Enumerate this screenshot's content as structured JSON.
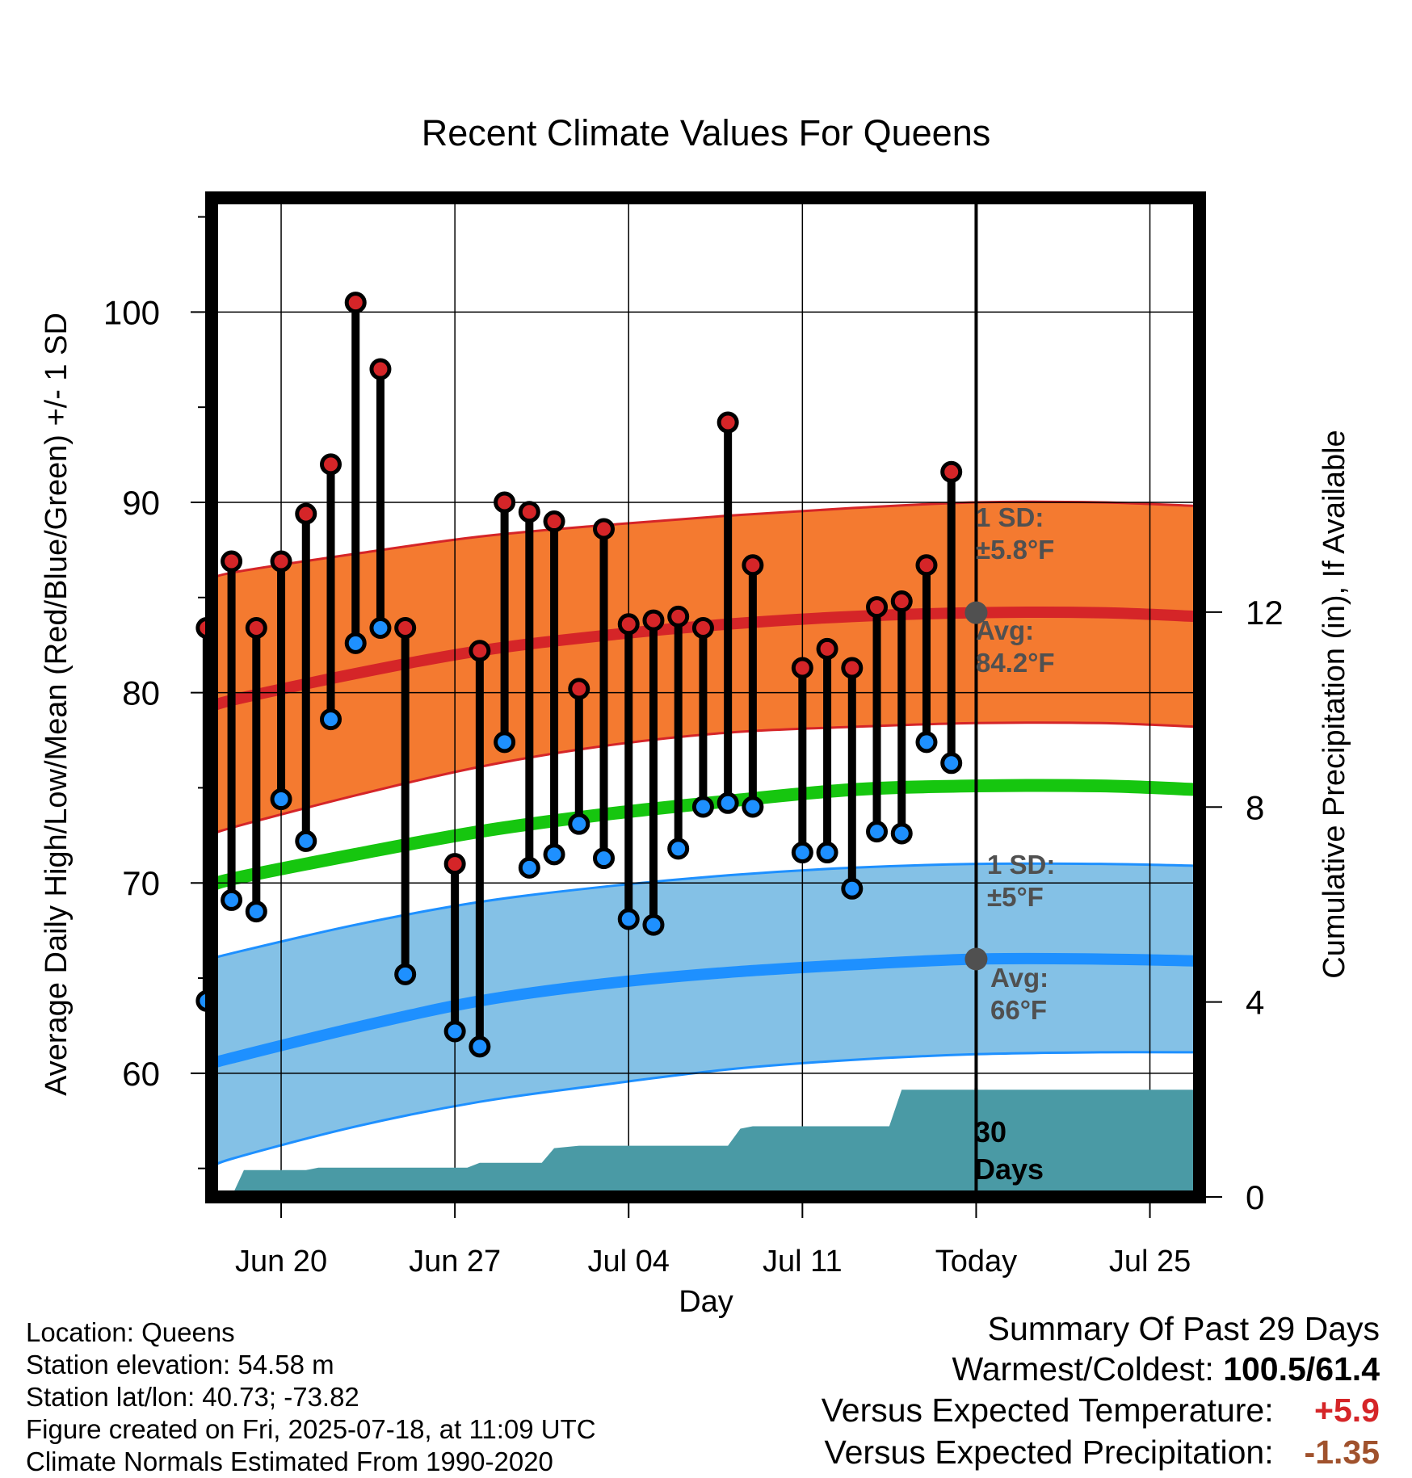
{
  "title": "Recent Climate Values For Queens",
  "colors": {
    "high_marker": "#d52528",
    "low_marker": "#1e90ff",
    "high_band": "#f47a30",
    "high_band_edge": "#d52528",
    "low_band": "#84c1e6",
    "low_band_edge": "#1e90ff",
    "mean_line": "#16c60f",
    "precip_fill": "#4a9aa5",
    "annotation": "#505050",
    "warm_value": "#d52528",
    "precip_value": "#a0522d"
  },
  "chart_data": {
    "type": "line",
    "title": "Recent Climate Values For Queens",
    "xlabel": "Day",
    "ylabel": "Average Daily High/Low/Mean (Red/Blue/Green) +/- 1 SD",
    "y2label": "Cumulative Precipitation (in), If Available",
    "x_tick_labels": [
      "Jun 20",
      "Jun 27",
      "Jul 04",
      "Jul 11",
      "Today",
      "Jul 25"
    ],
    "x_tick_days": [
      2,
      9,
      16,
      23,
      30,
      37
    ],
    "x_range_days": [
      -0.8,
      39
    ],
    "ylim": [
      53.5,
      106
    ],
    "y_ticks": [
      60,
      70,
      80,
      90,
      100
    ],
    "y2lim": [
      0,
      20.5
    ],
    "y2_ticks": [
      0,
      4,
      8,
      12
    ],
    "grid": true,
    "today_day": 30,
    "daily_observations": {
      "day": [
        -1,
        0,
        1,
        2,
        3,
        4,
        5,
        6,
        7,
        8,
        9,
        10,
        11,
        12,
        13,
        14,
        15,
        16,
        17,
        18,
        19,
        20,
        21,
        22,
        23,
        24,
        25,
        26,
        27,
        28,
        29
      ],
      "high": [
        83.4,
        86.9,
        83.4,
        86.9,
        89.4,
        92.0,
        100.5,
        97.0,
        83.4,
        null,
        71.0,
        82.2,
        90.0,
        89.5,
        89.0,
        80.2,
        88.6,
        83.6,
        83.8,
        84.0,
        83.4,
        94.2,
        86.7,
        null,
        81.3,
        82.3,
        81.3,
        84.5,
        84.8,
        86.7,
        91.6
      ],
      "low": [
        63.8,
        69.1,
        68.5,
        74.4,
        72.2,
        78.6,
        82.6,
        83.4,
        65.2,
        null,
        62.2,
        61.4,
        77.4,
        70.8,
        71.5,
        73.1,
        71.3,
        68.1,
        67.8,
        71.8,
        74.0,
        74.2,
        74.0,
        null,
        71.6,
        71.6,
        69.7,
        72.7,
        72.6,
        77.4,
        76.3
      ]
    },
    "normal_high": {
      "day": [
        -0.8,
        0,
        5,
        10,
        15,
        20,
        25,
        30,
        35,
        39
      ],
      "avg": [
        79.2,
        79.6,
        81.0,
        82.2,
        83.0,
        83.6,
        84.0,
        84.2,
        84.2,
        84.0
      ],
      "upper": [
        85.9,
        86.3,
        87.3,
        88.2,
        88.8,
        89.3,
        89.7,
        90.0,
        90.0,
        89.8
      ],
      "lower": [
        72.5,
        72.9,
        74.6,
        76.1,
        77.2,
        77.9,
        78.2,
        78.4,
        78.4,
        78.2
      ]
    },
    "normal_mean": {
      "day": [
        -0.8,
        0,
        5,
        10,
        15,
        20,
        25,
        30,
        35,
        39
      ],
      "values": [
        69.8,
        70.2,
        71.5,
        72.7,
        73.6,
        74.3,
        74.9,
        75.1,
        75.1,
        74.9
      ]
    },
    "normal_low": {
      "day": [
        -0.8,
        0,
        5,
        10,
        15,
        20,
        25,
        30,
        35,
        39
      ],
      "avg": [
        60.5,
        60.8,
        62.4,
        63.8,
        64.7,
        65.3,
        65.7,
        66.0,
        66.0,
        65.9
      ],
      "upper": [
        66.0,
        66.3,
        67.8,
        69.0,
        69.8,
        70.4,
        70.8,
        71.0,
        71.0,
        70.9
      ],
      "lower": [
        55.0,
        55.5,
        57.2,
        58.5,
        59.4,
        60.2,
        60.7,
        61.0,
        61.1,
        61.1
      ]
    },
    "cumulative_precip": {
      "day": [
        0,
        0.5,
        1,
        1.5,
        2,
        2,
        3,
        3.5,
        4,
        5,
        6,
        7,
        8,
        9,
        9.5,
        10,
        11,
        12,
        12.5,
        13,
        14,
        15,
        16,
        17,
        18,
        19,
        20,
        20.5,
        21,
        22,
        23,
        24,
        25,
        26,
        26.5,
        27,
        28,
        29,
        30,
        31,
        32,
        33,
        34,
        35,
        36,
        37,
        38,
        39
      ],
      "values": [
        0,
        0.55,
        0.55,
        0.55,
        0.55,
        0.55,
        0.55,
        0.6,
        0.6,
        0.6,
        0.6,
        0.6,
        0.6,
        0.6,
        0.6,
        0.7,
        0.7,
        0.7,
        0.7,
        1.0,
        1.05,
        1.05,
        1.05,
        1.05,
        1.05,
        1.05,
        1.05,
        1.4,
        1.45,
        1.45,
        1.45,
        1.45,
        1.45,
        1.45,
        1.45,
        2.2,
        2.2,
        2.2,
        2.2,
        2.2,
        2.2,
        2.2,
        2.2,
        2.2,
        2.2,
        2.2,
        2.2,
        2.2
      ]
    },
    "annotations": {
      "high_sd_label": "1 SD:",
      "high_sd_value": "±5.8°F",
      "high_avg_label": "Avg:",
      "high_avg_value": "84.2°F",
      "low_sd_label": "1 SD:",
      "low_sd_value": "±5°F",
      "low_avg_label": "Avg:",
      "low_avg_value": "66°F",
      "period_number": "30",
      "period_unit": "Days"
    }
  },
  "info": {
    "location": "Location: Queens",
    "elevation": "Station elevation: 54.58 m",
    "latlon": "Station lat/lon: 40.73; -73.82",
    "created": "Figure created on Fri, 2025-07-18, at 11:09 UTC",
    "normals": "Climate Normals Estimated From 1990-2020"
  },
  "summary": {
    "heading": "Summary Of Past 29 Days",
    "warm_cold_label": "Warmest/Coldest:",
    "warm_cold_value": "100.5/61.4",
    "temp_label": "Versus Expected Temperature:",
    "temp_value": "+5.9",
    "precip_label": "Versus Expected Precipitation:",
    "precip_value": "-1.35"
  }
}
